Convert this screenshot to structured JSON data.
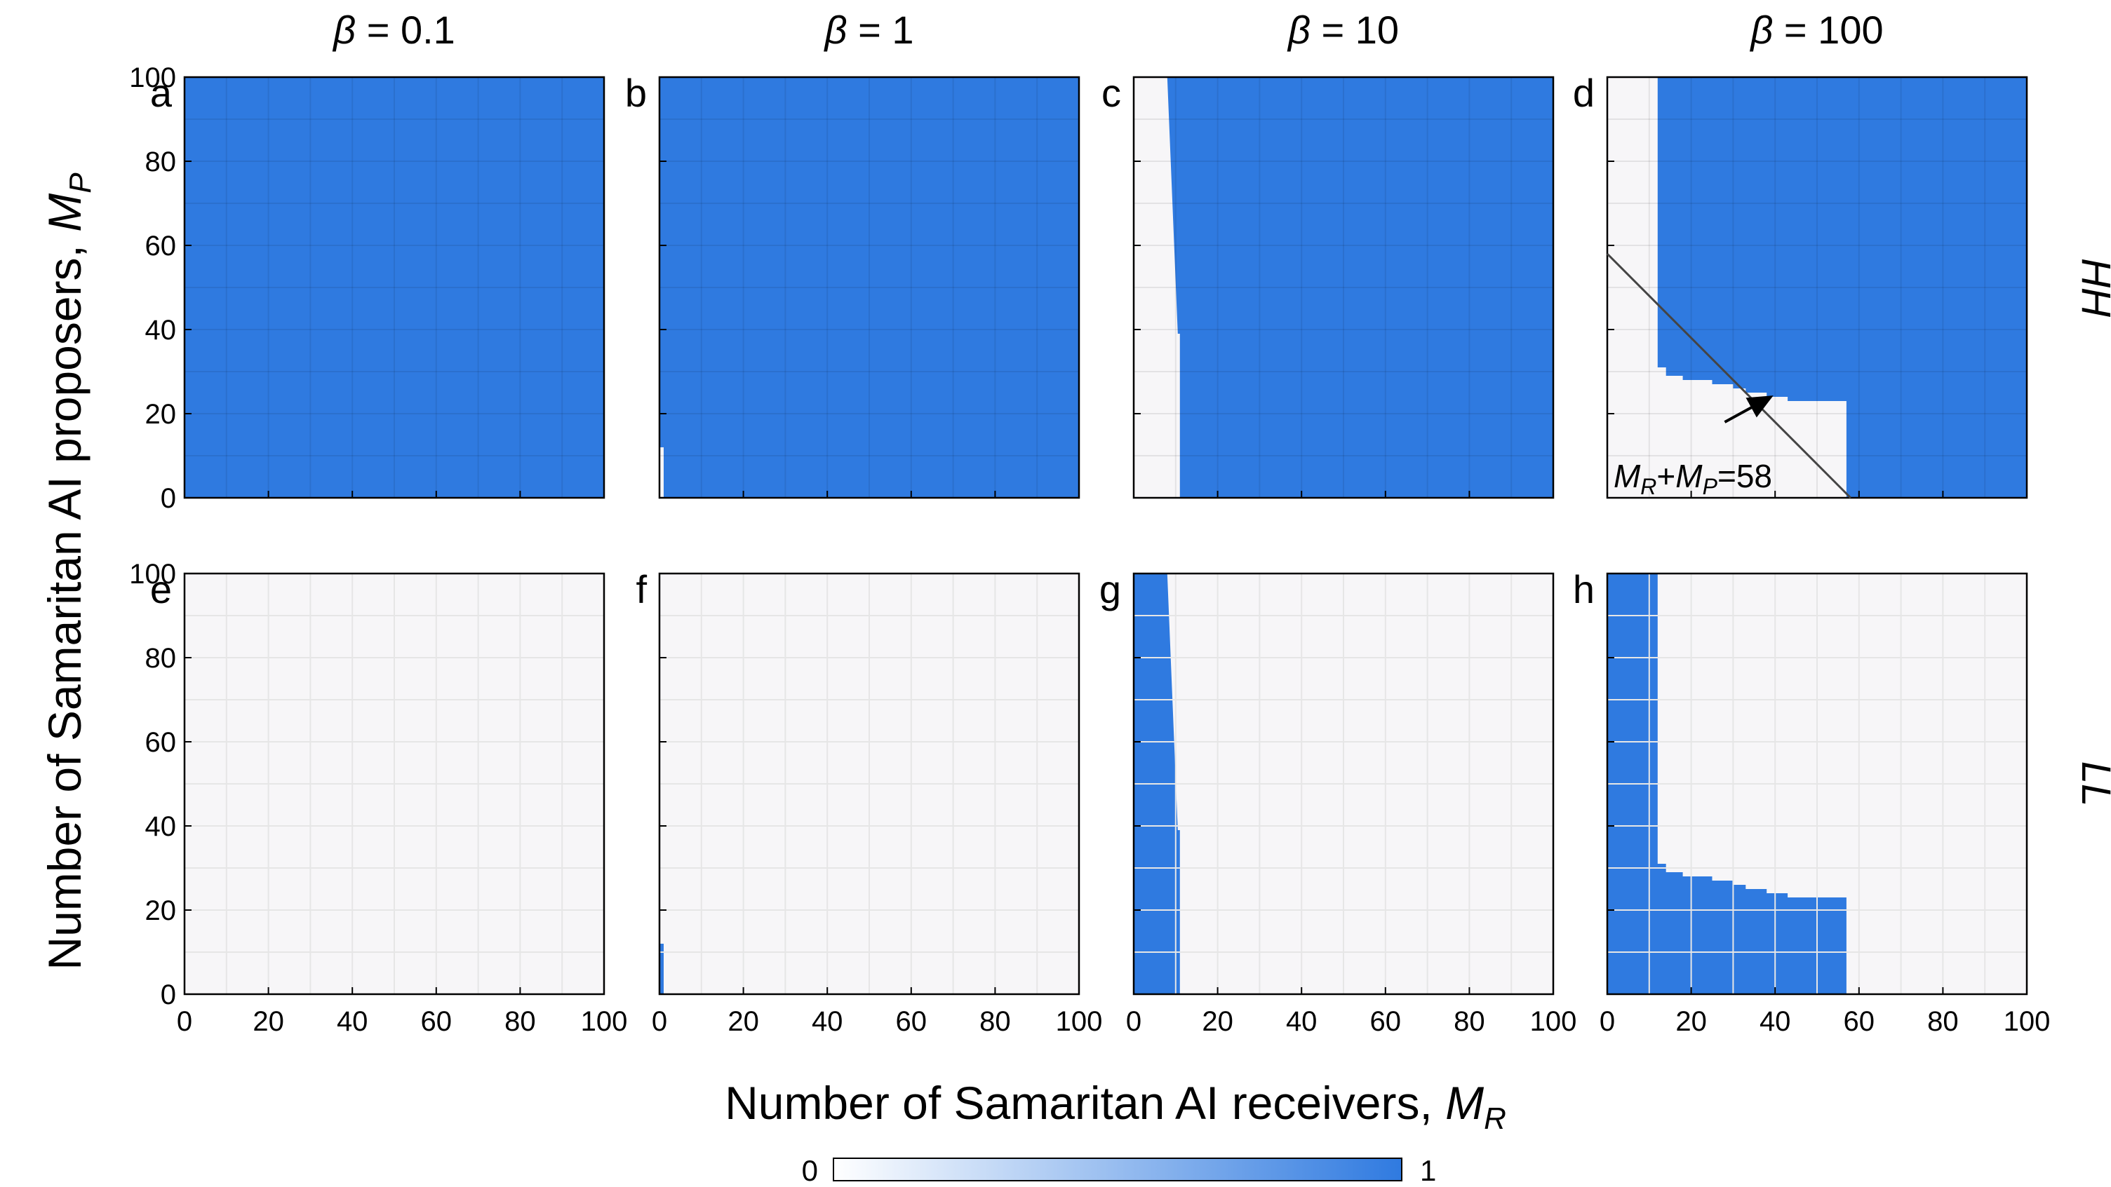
{
  "chart_data": {
    "type": "heatmap",
    "x_label": {
      "text": "Number of Samaritan AI receivers, ",
      "var": "M",
      "sub": "R"
    },
    "y_label": {
      "text": "Number of Samaritan AI proposers, ",
      "var": "M",
      "sub": "P"
    },
    "column_titles": [
      {
        "sym": "β",
        "text": " = 0.1"
      },
      {
        "sym": "β",
        "text": " = 1"
      },
      {
        "sym": "β",
        "text": " = 10"
      },
      {
        "sym": "β",
        "text": " = 100"
      }
    ],
    "row_labels": [
      "HH",
      "LL"
    ],
    "x_ticks": [
      "0",
      "20",
      "40",
      "60",
      "80",
      "100"
    ],
    "y_ticks": [
      "0",
      "20",
      "40",
      "60",
      "80",
      "100"
    ],
    "xlim": [
      0,
      100
    ],
    "ylim": [
      0,
      100
    ],
    "colorbar": {
      "min_label": "0",
      "max_label": "1",
      "min_color": "#ffffff",
      "max_color": "#2f7ae0"
    },
    "colors": {
      "high": "#2f7ae0",
      "low": "#f7f6f8",
      "grid": "#e6e6e6"
    },
    "panels": [
      {
        "letter": "a",
        "row": "HH",
        "beta": 0.1,
        "background": 1,
        "regions": []
      },
      {
        "letter": "b",
        "row": "HH",
        "beta": 1,
        "background": 1,
        "regions": [
          {
            "value": 0,
            "poly": [
              [
                0,
                0
              ],
              [
                1,
                0
              ],
              [
                1,
                12
              ],
              [
                0,
                12
              ]
            ]
          }
        ]
      },
      {
        "letter": "c",
        "row": "HH",
        "beta": 10,
        "background": 1,
        "regions": [
          {
            "value": 0,
            "poly": [
              [
                0,
                0
              ],
              [
                11,
                0
              ],
              [
                11,
                39
              ],
              [
                10.5,
                39
              ],
              [
                8,
                100
              ],
              [
                0,
                100
              ]
            ]
          }
        ]
      },
      {
        "letter": "d",
        "row": "HH",
        "beta": 100,
        "background": 1,
        "regions": [
          {
            "value": 0,
            "poly": [
              [
                0,
                0
              ],
              [
                57,
                0
              ],
              [
                57,
                23
              ],
              [
                43,
                23
              ],
              [
                43,
                24
              ],
              [
                38,
                24
              ],
              [
                38,
                25
              ],
              [
                33,
                25
              ],
              [
                33,
                26
              ],
              [
                30,
                26
              ],
              [
                30,
                27
              ],
              [
                25,
                27
              ],
              [
                25,
                28
              ],
              [
                18,
                28
              ],
              [
                18,
                29
              ],
              [
                14,
                29
              ],
              [
                14,
                31
              ],
              [
                12,
                31
              ],
              [
                12,
                100
              ],
              [
                0,
                100
              ]
            ]
          }
        ],
        "annotation": {
          "line": [
            [
              0,
              58
            ],
            [
              58,
              0
            ]
          ],
          "arrow_from": [
            28,
            18
          ],
          "arrow_to": [
            39,
            24
          ],
          "label_parts": [
            "M",
            "R",
            "+M",
            "P",
            "=58"
          ]
        }
      },
      {
        "letter": "e",
        "row": "LL",
        "beta": 0.1,
        "background": 0,
        "regions": []
      },
      {
        "letter": "f",
        "row": "LL",
        "beta": 1,
        "background": 0,
        "regions": [
          {
            "value": 1,
            "poly": [
              [
                0,
                0
              ],
              [
                1,
                0
              ],
              [
                1,
                12
              ],
              [
                0,
                12
              ]
            ]
          }
        ]
      },
      {
        "letter": "g",
        "row": "LL",
        "beta": 10,
        "background": 0,
        "regions": [
          {
            "value": 1,
            "poly": [
              [
                0,
                0
              ],
              [
                11,
                0
              ],
              [
                11,
                39
              ],
              [
                10.5,
                39
              ],
              [
                8,
                100
              ],
              [
                0,
                100
              ]
            ]
          }
        ]
      },
      {
        "letter": "h",
        "row": "LL",
        "beta": 100,
        "background": 0,
        "regions": [
          {
            "value": 1,
            "poly": [
              [
                0,
                0
              ],
              [
                57,
                0
              ],
              [
                57,
                23
              ],
              [
                43,
                23
              ],
              [
                43,
                24
              ],
              [
                38,
                24
              ],
              [
                38,
                25
              ],
              [
                33,
                25
              ],
              [
                33,
                26
              ],
              [
                30,
                26
              ],
              [
                30,
                27
              ],
              [
                25,
                27
              ],
              [
                25,
                28
              ],
              [
                18,
                28
              ],
              [
                18,
                29
              ],
              [
                14,
                29
              ],
              [
                14,
                31
              ],
              [
                12,
                31
              ],
              [
                12,
                100
              ],
              [
                0,
                100
              ]
            ]
          }
        ]
      }
    ]
  }
}
